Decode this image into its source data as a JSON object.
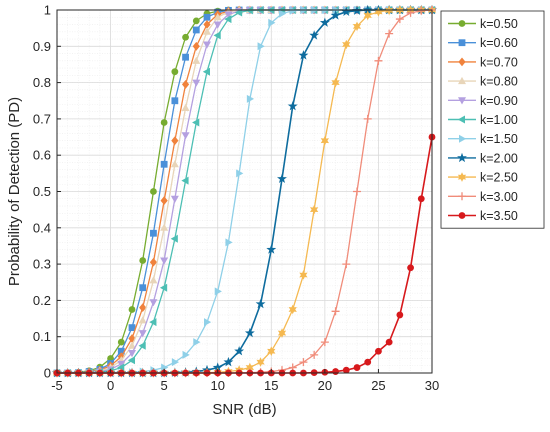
{
  "chart_data": {
    "type": "line",
    "xlabel": "SNR (dB)",
    "ylabel": "Probability of Detection (PD)",
    "xlim": [
      -5,
      30
    ],
    "ylim": [
      0,
      1
    ],
    "xticks": [
      "-5",
      "0",
      "5",
      "10",
      "15",
      "20",
      "25",
      "30"
    ],
    "yticks": [
      "0",
      "0.1",
      "0.2",
      "0.3",
      "0.4",
      "0.5",
      "0.6",
      "0.7",
      "0.8",
      "0.9",
      "1"
    ],
    "grid": "major and minor",
    "legend_position": "right, outside plot",
    "x": [
      -5,
      -4,
      -3,
      -2,
      -1,
      0,
      1,
      2,
      3,
      4,
      5,
      6,
      7,
      8,
      9,
      10,
      11,
      12,
      13,
      14,
      15,
      16,
      17,
      18,
      19,
      20,
      21,
      22,
      23,
      24,
      25,
      26,
      27,
      28,
      29,
      30
    ],
    "series": [
      {
        "name": "k=0.50",
        "color": "#77AC30",
        "marker": "circle",
        "values": [
          0.0,
          0.0,
          0.002,
          0.006,
          0.016,
          0.04,
          0.085,
          0.175,
          0.31,
          0.5,
          0.69,
          0.83,
          0.925,
          0.97,
          0.99,
          0.997,
          1.0,
          1.0,
          1.0,
          1.0,
          1.0,
          1.0,
          1.0,
          1.0,
          1.0,
          1.0,
          1.0,
          1.0,
          1.0,
          1.0,
          1.0,
          1.0,
          1.0,
          1.0,
          1.0,
          1.0
        ]
      },
      {
        "name": "k=0.60",
        "color": "#4A90D9",
        "marker": "square",
        "values": [
          0.0,
          0.0,
          0.001,
          0.004,
          0.01,
          0.026,
          0.06,
          0.125,
          0.235,
          0.385,
          0.575,
          0.75,
          0.87,
          0.945,
          0.98,
          0.994,
          0.999,
          1.0,
          1.0,
          1.0,
          1.0,
          1.0,
          1.0,
          1.0,
          1.0,
          1.0,
          1.0,
          1.0,
          1.0,
          1.0,
          1.0,
          1.0,
          1.0,
          1.0,
          1.0,
          1.0
        ]
      },
      {
        "name": "k=0.70",
        "color": "#F0823C",
        "marker": "diamond",
        "values": [
          0.0,
          0.0,
          0.001,
          0.003,
          0.008,
          0.02,
          0.045,
          0.095,
          0.18,
          0.305,
          0.475,
          0.64,
          0.795,
          0.9,
          0.96,
          0.988,
          0.997,
          1.0,
          1.0,
          1.0,
          1.0,
          1.0,
          1.0,
          1.0,
          1.0,
          1.0,
          1.0,
          1.0,
          1.0,
          1.0,
          1.0,
          1.0,
          1.0,
          1.0,
          1.0,
          1.0
        ]
      },
      {
        "name": "k=0.80",
        "color": "#E8D5B9",
        "marker": "triangle-up",
        "values": [
          0.0,
          0.0,
          0.001,
          0.002,
          0.006,
          0.015,
          0.035,
          0.075,
          0.145,
          0.255,
          0.4,
          0.575,
          0.73,
          0.86,
          0.94,
          0.98,
          0.995,
          0.999,
          1.0,
          1.0,
          1.0,
          1.0,
          1.0,
          1.0,
          1.0,
          1.0,
          1.0,
          1.0,
          1.0,
          1.0,
          1.0,
          1.0,
          1.0,
          1.0,
          1.0,
          1.0
        ]
      },
      {
        "name": "k=0.90",
        "color": "#B4A0E0",
        "marker": "triangle-down",
        "values": [
          0.0,
          0.0,
          0.0,
          0.001,
          0.004,
          0.01,
          0.025,
          0.055,
          0.11,
          0.195,
          0.31,
          0.48,
          0.655,
          0.8,
          0.905,
          0.96,
          0.988,
          0.997,
          1.0,
          1.0,
          1.0,
          1.0,
          1.0,
          1.0,
          1.0,
          1.0,
          1.0,
          1.0,
          1.0,
          1.0,
          1.0,
          1.0,
          1.0,
          1.0,
          1.0,
          1.0
        ]
      },
      {
        "name": "k=1.00",
        "color": "#4DBFB4",
        "marker": "triangle-left",
        "values": [
          0.0,
          0.0,
          0.0,
          0.001,
          0.002,
          0.006,
          0.015,
          0.035,
          0.075,
          0.14,
          0.235,
          0.37,
          0.53,
          0.69,
          0.83,
          0.93,
          0.975,
          0.993,
          0.999,
          1.0,
          1.0,
          1.0,
          1.0,
          1.0,
          1.0,
          1.0,
          1.0,
          1.0,
          1.0,
          1.0,
          1.0,
          1.0,
          1.0,
          1.0,
          1.0,
          1.0
        ]
      },
      {
        "name": "k=1.50",
        "color": "#8FD0E8",
        "marker": "triangle-right",
        "values": [
          0.0,
          0.0,
          0.0,
          0.0,
          0.0,
          0.0,
          0.0,
          0.002,
          0.004,
          0.008,
          0.015,
          0.03,
          0.05,
          0.085,
          0.14,
          0.225,
          0.36,
          0.55,
          0.755,
          0.9,
          0.965,
          0.99,
          0.998,
          1.0,
          1.0,
          1.0,
          1.0,
          1.0,
          1.0,
          1.0,
          1.0,
          1.0,
          1.0,
          1.0,
          1.0,
          1.0
        ]
      },
      {
        "name": "k=2.00",
        "color": "#0E6C9E",
        "marker": "pentagram",
        "values": [
          0.0,
          0.0,
          0.0,
          0.0,
          0.0,
          0.0,
          0.0,
          0.0,
          0.0,
          0.0,
          0.0,
          0.001,
          0.002,
          0.004,
          0.008,
          0.015,
          0.03,
          0.06,
          0.11,
          0.19,
          0.34,
          0.535,
          0.735,
          0.875,
          0.93,
          0.965,
          0.985,
          0.995,
          0.998,
          1.0,
          1.0,
          1.0,
          1.0,
          1.0,
          1.0,
          1.0
        ]
      },
      {
        "name": "k=2.50",
        "color": "#F5B951",
        "marker": "hexagram",
        "values": [
          0.0,
          0.0,
          0.0,
          0.0,
          0.0,
          0.0,
          0.0,
          0.0,
          0.0,
          0.0,
          0.0,
          0.0,
          0.0,
          0.0,
          0.001,
          0.002,
          0.004,
          0.008,
          0.015,
          0.03,
          0.06,
          0.11,
          0.175,
          0.27,
          0.45,
          0.64,
          0.8,
          0.905,
          0.955,
          0.985,
          0.995,
          0.999,
          1.0,
          1.0,
          1.0,
          1.0
        ]
      },
      {
        "name": "k=3.00",
        "color": "#F08C7A",
        "marker": "plus",
        "values": [
          0.0,
          0.0,
          0.0,
          0.0,
          0.0,
          0.0,
          0.0,
          0.0,
          0.0,
          0.0,
          0.0,
          0.0,
          0.0,
          0.0,
          0.0,
          0.0,
          0.0,
          0.0,
          0.001,
          0.002,
          0.004,
          0.008,
          0.015,
          0.03,
          0.05,
          0.085,
          0.17,
          0.3,
          0.5,
          0.7,
          0.86,
          0.935,
          0.975,
          0.992,
          0.998,
          1.0
        ]
      },
      {
        "name": "k=3.50",
        "color": "#D7191C",
        "marker": "circle-filled",
        "values": [
          0.0,
          0.0,
          0.0,
          0.0,
          0.0,
          0.0,
          0.0,
          0.0,
          0.0,
          0.0,
          0.0,
          0.0,
          0.0,
          0.0,
          0.0,
          0.0,
          0.0,
          0.0,
          0.0,
          0.0,
          0.0,
          0.0,
          0.0,
          0.0,
          0.001,
          0.002,
          0.004,
          0.008,
          0.015,
          0.03,
          0.06,
          0.085,
          0.16,
          0.29,
          0.48,
          0.65
        ]
      }
    ]
  }
}
